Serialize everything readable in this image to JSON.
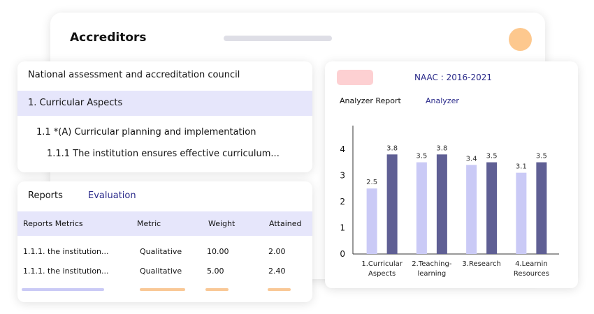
{
  "header": {
    "title": "Accreditors"
  },
  "tree": {
    "title": "National assessment and accreditation council",
    "items": [
      "1. Curricular Aspects",
      "1.1 *(A) Curricular planning and implementation",
      "1.1.1 The institution ensures effective curriculum..."
    ]
  },
  "reports": {
    "tabs": [
      "Reports",
      "Evaluation"
    ],
    "columns": [
      "Reports Metrics",
      "Metric",
      "Weight",
      "Attained"
    ],
    "rows": [
      [
        "1.1.1. the institution...",
        "Qualitative",
        "10.00",
        "2.00"
      ],
      [
        "1.1.1. the institution...",
        "Qualitative",
        "5.00",
        "2.40"
      ]
    ]
  },
  "panel": {
    "title": "NAAC : 2016-2021",
    "tabs": [
      "Analyzer Report",
      "Analyzer"
    ]
  },
  "chart_data": {
    "type": "bar",
    "categories": [
      "1.Curricular Aspects",
      "2.Teaching-learning",
      "3.Research",
      "4.Learnin Resources"
    ],
    "series": [
      {
        "color": "#cacaf6",
        "values": [
          2.5,
          3.5,
          3.4,
          3.1
        ]
      },
      {
        "color": "#5f5f94",
        "values": [
          3.8,
          3.8,
          3.5,
          3.5
        ]
      }
    ],
    "ylim": [
      0,
      4.9
    ],
    "yticks": [
      0,
      1,
      2,
      3,
      4
    ]
  }
}
